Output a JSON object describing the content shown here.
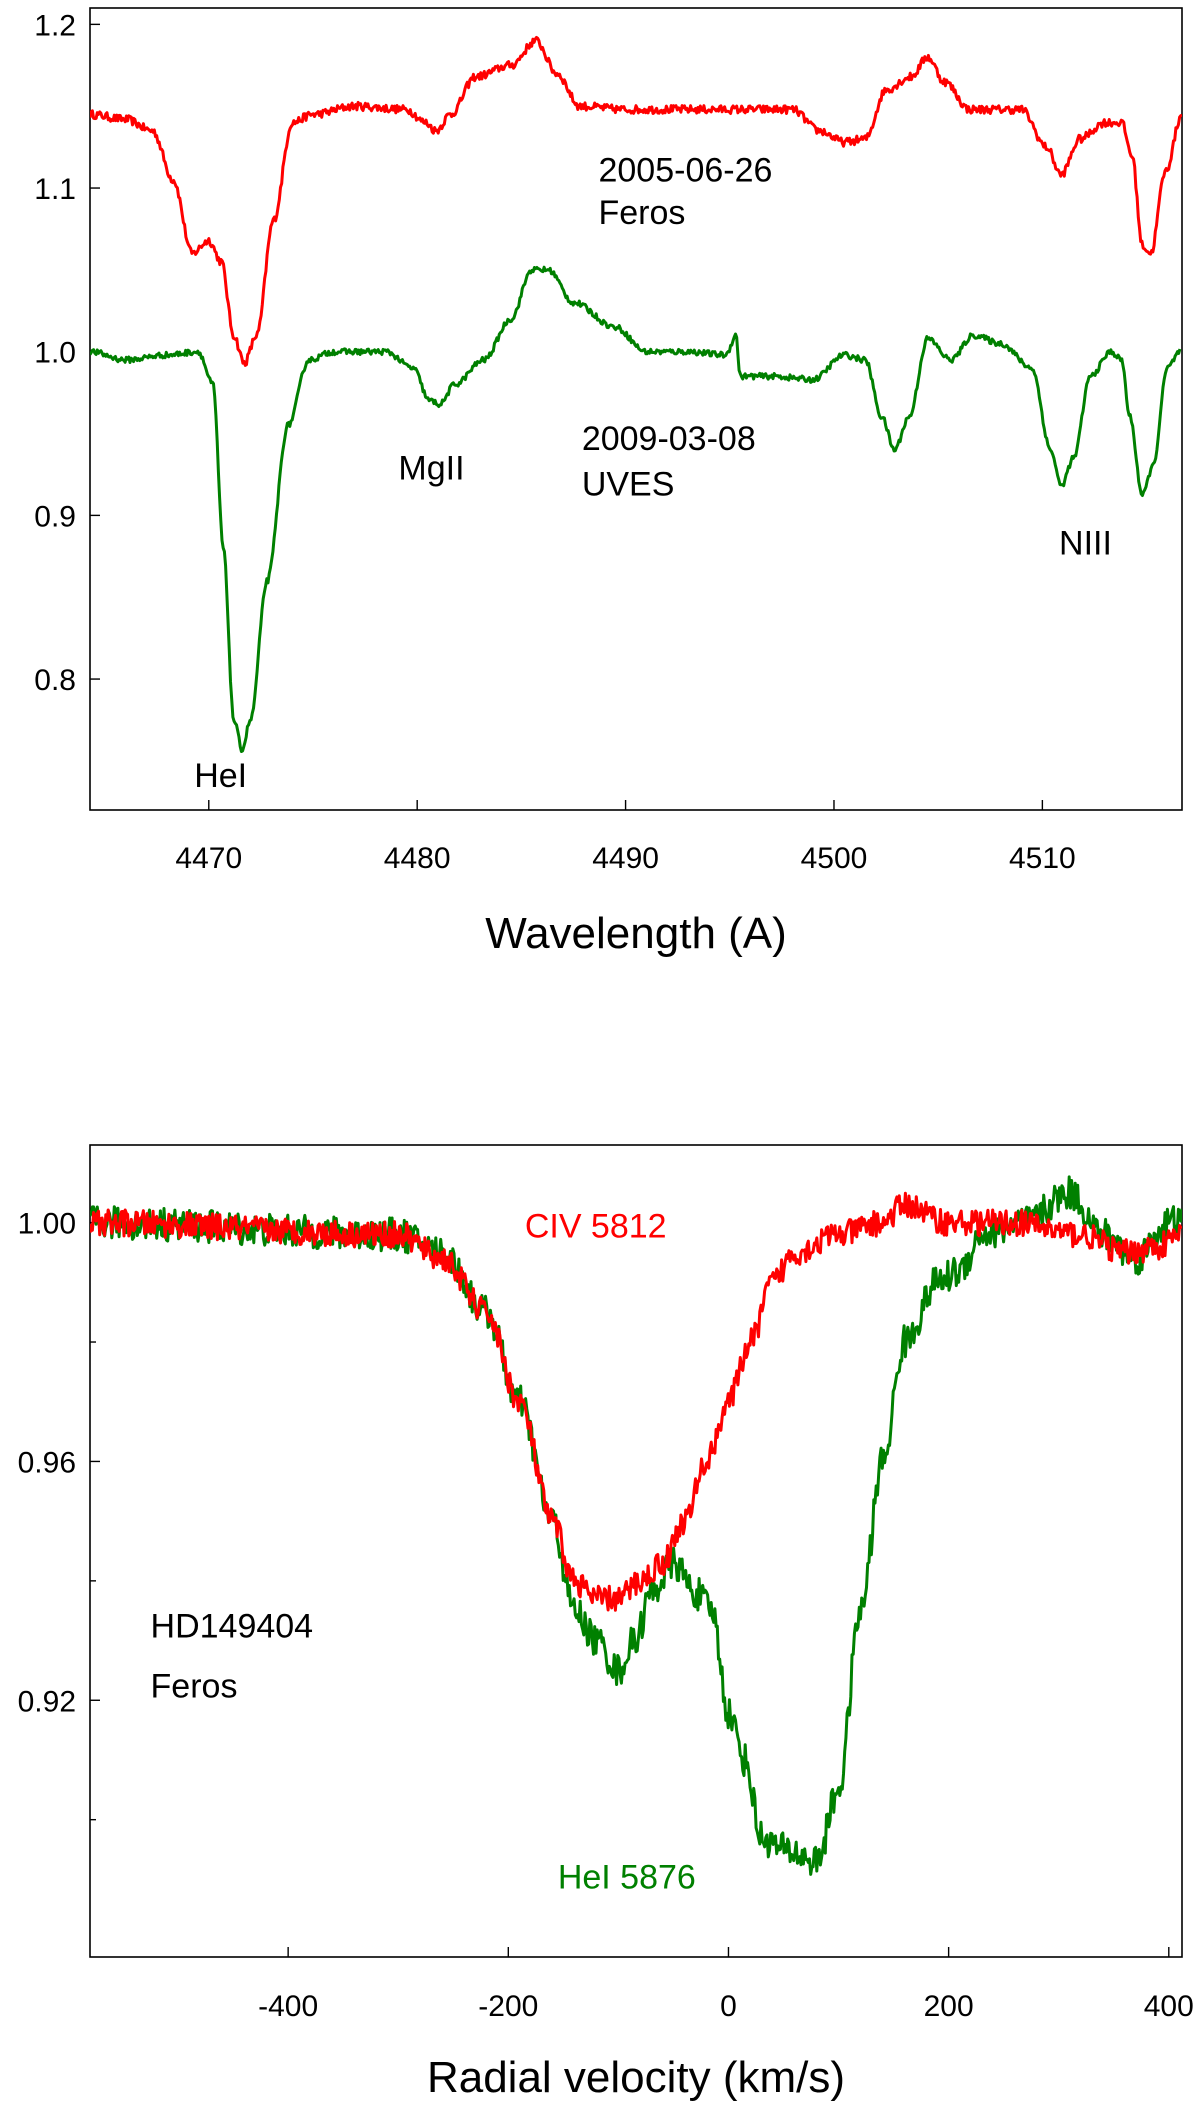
{
  "chart_data": [
    {
      "type": "line",
      "xlabel": "Wavelength (A)",
      "ylabel": "",
      "xlim": [
        4464.3,
        4516.7
      ],
      "ylim": [
        0.72,
        1.21
      ],
      "xticks": [
        4470,
        4480,
        4490,
        4500,
        4510
      ],
      "xtick_labels": [
        "4470",
        "4480",
        "4490",
        "4500",
        "4510"
      ],
      "yticks": [
        0.8,
        0.9,
        1.0,
        1.1,
        1.2
      ],
      "ytick_labels": [
        "0.8",
        "0.9",
        "1.0",
        "1.1",
        "1.2"
      ],
      "grid": false,
      "series": [
        {
          "color": "#ff0000",
          "noise": 0.0025,
          "points": [
            [
              4464.3,
              1.145
            ],
            [
              4466,
              1.142
            ],
            [
              4467.3,
              1.135
            ],
            [
              4468.3,
              1.105
            ],
            [
              4469.2,
              1.06
            ],
            [
              4470,
              1.068
            ],
            [
              4470.6,
              1.055
            ],
            [
              4471.2,
              1.01
            ],
            [
              4471.7,
              0.993
            ],
            [
              4472.3,
              1.01
            ],
            [
              4473.1,
              1.08
            ],
            [
              4474,
              1.14
            ],
            [
              4475,
              1.145
            ],
            [
              4477,
              1.15
            ],
            [
              4479.5,
              1.148
            ],
            [
              4480.4,
              1.14
            ],
            [
              4480.9,
              1.135
            ],
            [
              4481.6,
              1.145
            ],
            [
              4482.8,
              1.168
            ],
            [
              4484.5,
              1.175
            ],
            [
              4485.7,
              1.19
            ],
            [
              4486.7,
              1.17
            ],
            [
              4487.8,
              1.15
            ],
            [
              4490,
              1.148
            ],
            [
              4494,
              1.148
            ],
            [
              4498,
              1.148
            ],
            [
              4499.3,
              1.135
            ],
            [
              4500.5,
              1.128
            ],
            [
              4501.5,
              1.13
            ],
            [
              4502.5,
              1.16
            ],
            [
              4503.7,
              1.168
            ],
            [
              4504.5,
              1.18
            ],
            [
              4505.3,
              1.165
            ],
            [
              4506.5,
              1.148
            ],
            [
              4509,
              1.148
            ],
            [
              4510.2,
              1.125
            ],
            [
              4510.9,
              1.108
            ],
            [
              4511.8,
              1.13
            ],
            [
              4513,
              1.14
            ],
            [
              4513.8,
              1.14
            ],
            [
              4514.3,
              1.12
            ],
            [
              4514.8,
              1.065
            ],
            [
              4515.2,
              1.06
            ],
            [
              4515.9,
              1.11
            ],
            [
              4516.7,
              1.145
            ]
          ]
        },
        {
          "color": "#008000",
          "noise": 0.0018,
          "points": [
            [
              4464.3,
              1.0
            ],
            [
              4466,
              0.995
            ],
            [
              4468,
              0.998
            ],
            [
              4469.5,
              1.0
            ],
            [
              4470.2,
              0.98
            ],
            [
              4470.7,
              0.88
            ],
            [
              4471.2,
              0.775
            ],
            [
              4471.6,
              0.757
            ],
            [
              4472.0,
              0.775
            ],
            [
              4472.8,
              0.86
            ],
            [
              4473.8,
              0.955
            ],
            [
              4474.8,
              0.995
            ],
            [
              4476,
              1.0
            ],
            [
              4478.5,
              1.0
            ],
            [
              4479.8,
              0.99
            ],
            [
              4480.6,
              0.97
            ],
            [
              4481.1,
              0.968
            ],
            [
              4481.8,
              0.98
            ],
            [
              4483.2,
              0.995
            ],
            [
              4484.5,
              1.02
            ],
            [
              4485.5,
              1.05
            ],
            [
              4486.3,
              1.05
            ],
            [
              4487.5,
              1.03
            ],
            [
              4489.5,
              1.015
            ],
            [
              4491,
              1.0
            ],
            [
              4493,
              1.0
            ],
            [
              4494.8,
              0.998
            ],
            [
              4495.3,
              1.01
            ],
            [
              4495.5,
              0.985
            ],
            [
              4497,
              0.985
            ],
            [
              4499,
              0.983
            ],
            [
              4500.5,
              0.998
            ],
            [
              4501.5,
              0.995
            ],
            [
              4502.3,
              0.96
            ],
            [
              4502.9,
              0.94
            ],
            [
              4503.6,
              0.96
            ],
            [
              4504.5,
              1.008
            ],
            [
              4505.6,
              0.995
            ],
            [
              4506.7,
              1.01
            ],
            [
              4508,
              1.005
            ],
            [
              4509.5,
              0.99
            ],
            [
              4510.4,
              0.94
            ],
            [
              4510.9,
              0.918
            ],
            [
              4511.5,
              0.935
            ],
            [
              4512.3,
              0.985
            ],
            [
              4513.3,
              1.0
            ],
            [
              4513.8,
              0.995
            ],
            [
              4514.2,
              0.96
            ],
            [
              4514.8,
              0.912
            ],
            [
              4515.3,
              0.93
            ],
            [
              4516.0,
              0.99
            ],
            [
              4516.6,
              1.0
            ]
          ]
        }
      ],
      "annotations": [
        {
          "text": "2005-06-26",
          "x": 4488.7,
          "y": 1.104,
          "color": "#000000"
        },
        {
          "text": "Feros",
          "x": 4488.7,
          "y": 1.078,
          "color": "#000000"
        },
        {
          "text": "MgII",
          "x": 4479.1,
          "y": 0.922,
          "color": "#000000"
        },
        {
          "text": "2009-03-08",
          "x": 4487.9,
          "y": 0.94,
          "color": "#000000"
        },
        {
          "text": "UVES",
          "x": 4487.9,
          "y": 0.912,
          "color": "#000000"
        },
        {
          "text": "NIII",
          "x": 4510.8,
          "y": 0.876,
          "color": "#000000"
        },
        {
          "text": "HeI",
          "x": 4469.3,
          "y": 0.734,
          "color": "#000000"
        }
      ]
    },
    {
      "type": "line",
      "xlabel": "Radial velocity (km/s)",
      "ylabel": "",
      "xlim": [
        -580,
        412
      ],
      "ylim": [
        0.877,
        1.013
      ],
      "xticks": [
        -400,
        -200,
        0,
        200,
        400
      ],
      "xtick_labels": [
        "-400",
        "-200",
        "0",
        "200",
        "400"
      ],
      "yticks": [
        0.92,
        0.96,
        1.0
      ],
      "ytick_labels": [
        "0.92",
        "0.96",
        "1.00"
      ],
      "minor_yticks": [
        0.9,
        0.94,
        0.98
      ],
      "grid": false,
      "series": [
        {
          "color": "#008000",
          "noise": 0.0028,
          "points": [
            [
              -580,
              1.0
            ],
            [
              -300,
              0.998
            ],
            [
              -260,
              0.995
            ],
            [
              -220,
              0.985
            ],
            [
              -190,
              0.97
            ],
            [
              -160,
              0.95
            ],
            [
              -140,
              0.935
            ],
            [
              -120,
              0.93
            ],
            [
              -100,
              0.925
            ],
            [
              -85,
              0.93
            ],
            [
              -70,
              0.938
            ],
            [
              -50,
              0.943
            ],
            [
              -30,
              0.938
            ],
            [
              -15,
              0.935
            ],
            [
              0,
              0.918
            ],
            [
              15,
              0.91
            ],
            [
              30,
              0.897
            ],
            [
              50,
              0.895
            ],
            [
              80,
              0.893
            ],
            [
              100,
              0.905
            ],
            [
              120,
              0.935
            ],
            [
              140,
              0.96
            ],
            [
              160,
              0.98
            ],
            [
              190,
              0.99
            ],
            [
              210,
              0.992
            ],
            [
              230,
              0.998
            ],
            [
              270,
              1.0
            ],
            [
              310,
              1.005
            ],
            [
              340,
              0.998
            ],
            [
              370,
              0.994
            ],
            [
              400,
              1.0
            ],
            [
              412,
              1.0
            ]
          ]
        },
        {
          "color": "#ff0000",
          "noise": 0.0022,
          "points": [
            [
              -580,
              1.0
            ],
            [
              -300,
              0.998
            ],
            [
              -260,
              0.994
            ],
            [
              -220,
              0.985
            ],
            [
              -190,
              0.97
            ],
            [
              -160,
              0.95
            ],
            [
              -140,
              0.94
            ],
            [
              -120,
              0.937
            ],
            [
              -100,
              0.937
            ],
            [
              -80,
              0.94
            ],
            [
              -60,
              0.943
            ],
            [
              -40,
              0.95
            ],
            [
              -20,
              0.96
            ],
            [
              0,
              0.97
            ],
            [
              20,
              0.98
            ],
            [
              40,
              0.99
            ],
            [
              60,
              0.995
            ],
            [
              100,
              0.998
            ],
            [
              140,
              1.0
            ],
            [
              160,
              1.003
            ],
            [
              200,
              1.0
            ],
            [
              260,
              1.0
            ],
            [
              320,
              0.998
            ],
            [
              360,
              0.995
            ],
            [
              390,
              0.996
            ],
            [
              412,
              0.998
            ]
          ]
        }
      ],
      "annotations": [
        {
          "text": "CIV 5812",
          "x": -185,
          "y": 0.9975,
          "color": "#ff0000"
        },
        {
          "text": "HeI 5876",
          "x": -155,
          "y": 0.8885,
          "color": "#008000"
        },
        {
          "text": "HD149404",
          "x": -525,
          "y": 0.9305,
          "color": "#000000"
        },
        {
          "text": "Feros",
          "x": -525,
          "y": 0.9205,
          "color": "#000000"
        }
      ]
    }
  ]
}
